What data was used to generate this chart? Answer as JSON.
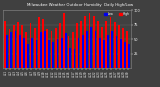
{
  "title": "Milwaukee Weather Outdoor Humidity",
  "subtitle": "Daily High/Low",
  "bar_width": 0.42,
  "background_color": "#404040",
  "plot_bg_color": "#404040",
  "high_color": "#ff0000",
  "low_color": "#0000ee",
  "grid_color": "#666666",
  "ylim": [
    0,
    100
  ],
  "ytick_vals": [
    25,
    50,
    75,
    100
  ],
  "ytick_labels": [
    "25",
    "50",
    "75",
    "100"
  ],
  "categories": [
    "4/1",
    "4/2",
    "4/3",
    "4/4",
    "4/5",
    "4/6",
    "4/7",
    "4/8",
    "4/9",
    "4/10",
    "4/11",
    "4/12",
    "4/13",
    "4/14",
    "4/15",
    "4/16",
    "4/17",
    "4/18",
    "4/19",
    "4/20",
    "4/21",
    "4/22",
    "4/23",
    "4/24",
    "4/25",
    "4/26",
    "4/27",
    "4/28",
    "4/29",
    "4/30"
  ],
  "highs": [
    82,
    68,
    75,
    80,
    75,
    62,
    78,
    70,
    88,
    85,
    68,
    65,
    70,
    78,
    95,
    55,
    62,
    78,
    82,
    90,
    95,
    90,
    82,
    72,
    82,
    88,
    80,
    75,
    70,
    65
  ],
  "lows": [
    58,
    62,
    65,
    58,
    52,
    42,
    52,
    48,
    62,
    65,
    48,
    45,
    50,
    52,
    60,
    35,
    32,
    52,
    58,
    65,
    72,
    65,
    52,
    48,
    58,
    65,
    55,
    50,
    45,
    42
  ],
  "legend_high_label": "High",
  "legend_low_label": "Low",
  "text_color": "#ffffff"
}
